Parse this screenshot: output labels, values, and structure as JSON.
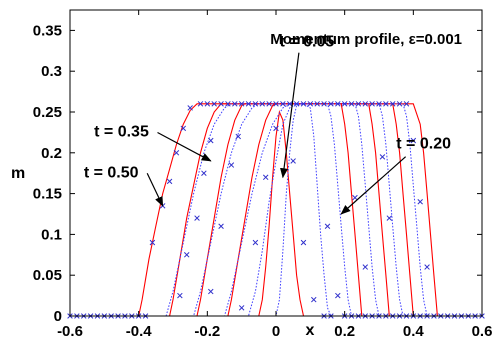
{
  "chart_data": {
    "type": "line",
    "title": "Momentum profile, ε=0.001",
    "xlabel": "x",
    "ylabel": "m",
    "xlim": [
      -0.6,
      0.6
    ],
    "ylim": [
      0,
      0.375
    ],
    "x_ticks": [
      "-0.6",
      "-0.4",
      "-0.2",
      "0",
      "0.2",
      "0.4",
      "0.6"
    ],
    "x_tick_values": [
      -0.6,
      -0.4,
      -0.2,
      0,
      0.2,
      0.4,
      0.6
    ],
    "y_ticks": [
      "0",
      "0.05",
      "0.1",
      "0.15",
      "0.2",
      "0.25",
      "0.3",
      "0.35"
    ],
    "y_tick_values": [
      0,
      0.05,
      0.1,
      0.15,
      0.2,
      0.25,
      0.3,
      0.35
    ],
    "plateau": 0.26,
    "grid": false,
    "colors": {
      "solid": "#ff0000",
      "dotted": "#4040ff",
      "markers": "#3030cc",
      "axes": "#000000"
    },
    "series": [
      {
        "style": "solid",
        "points": [
          [
            -0.4,
            0
          ],
          [
            -0.39,
            0.02
          ],
          [
            -0.37,
            0.07
          ],
          [
            -0.35,
            0.11
          ],
          [
            -0.33,
            0.15
          ],
          [
            -0.31,
            0.18
          ],
          [
            -0.29,
            0.21
          ],
          [
            -0.27,
            0.235
          ],
          [
            -0.25,
            0.252
          ],
          [
            -0.23,
            0.26
          ],
          [
            0.4,
            0.26
          ],
          [
            0.42,
            0.235
          ],
          [
            0.43,
            0.2
          ],
          [
            0.44,
            0.15
          ],
          [
            0.45,
            0.1
          ],
          [
            0.46,
            0.05
          ],
          [
            0.47,
            0
          ]
        ]
      },
      {
        "style": "solid",
        "points": [
          [
            -0.31,
            0
          ],
          [
            -0.3,
            0.02
          ],
          [
            -0.28,
            0.07
          ],
          [
            -0.26,
            0.12
          ],
          [
            -0.24,
            0.16
          ],
          [
            -0.22,
            0.2
          ],
          [
            -0.2,
            0.23
          ],
          [
            -0.18,
            0.25
          ],
          [
            -0.16,
            0.26
          ],
          [
            0.34,
            0.26
          ],
          [
            0.35,
            0.235
          ],
          [
            0.36,
            0.2
          ],
          [
            0.37,
            0.15
          ],
          [
            0.38,
            0.1
          ],
          [
            0.39,
            0.05
          ],
          [
            0.4,
            0
          ]
        ]
      },
      {
        "style": "solid",
        "points": [
          [
            -0.23,
            0
          ],
          [
            -0.22,
            0.02
          ],
          [
            -0.2,
            0.07
          ],
          [
            -0.18,
            0.12
          ],
          [
            -0.16,
            0.17
          ],
          [
            -0.14,
            0.21
          ],
          [
            -0.12,
            0.24
          ],
          [
            -0.1,
            0.258
          ],
          [
            -0.09,
            0.26
          ],
          [
            0.27,
            0.26
          ],
          [
            0.28,
            0.235
          ],
          [
            0.29,
            0.2
          ],
          [
            0.3,
            0.15
          ],
          [
            0.31,
            0.1
          ],
          [
            0.32,
            0.05
          ],
          [
            0.33,
            0
          ]
        ]
      },
      {
        "style": "solid",
        "points": [
          [
            -0.14,
            0
          ],
          [
            -0.13,
            0.02
          ],
          [
            -0.11,
            0.07
          ],
          [
            -0.09,
            0.12
          ],
          [
            -0.07,
            0.17
          ],
          [
            -0.05,
            0.21
          ],
          [
            -0.03,
            0.24
          ],
          [
            -0.01,
            0.258
          ],
          [
            0.0,
            0.26
          ],
          [
            0.19,
            0.26
          ],
          [
            0.2,
            0.235
          ],
          [
            0.21,
            0.2
          ],
          [
            0.22,
            0.15
          ],
          [
            0.23,
            0.1
          ],
          [
            0.24,
            0.05
          ],
          [
            0.25,
            0
          ]
        ]
      },
      {
        "style": "solid",
        "points": [
          [
            -0.05,
            0
          ],
          [
            -0.04,
            0.02
          ],
          [
            -0.03,
            0.06
          ],
          [
            -0.02,
            0.11
          ],
          [
            -0.01,
            0.17
          ],
          [
            0.0,
            0.22
          ],
          [
            0.01,
            0.25
          ],
          [
            0.02,
            0.24
          ],
          [
            0.03,
            0.2
          ],
          [
            0.04,
            0.15
          ],
          [
            0.05,
            0.1
          ],
          [
            0.06,
            0.05
          ],
          [
            0.07,
            0.02
          ],
          [
            0.08,
            0
          ]
        ]
      },
      {
        "style": "dotted",
        "points": [
          [
            -0.32,
            0
          ],
          [
            -0.3,
            0.03
          ],
          [
            -0.27,
            0.09
          ],
          [
            -0.24,
            0.15
          ],
          [
            -0.21,
            0.2
          ],
          [
            -0.18,
            0.235
          ],
          [
            -0.15,
            0.255
          ],
          [
            -0.13,
            0.26
          ],
          [
            0.37,
            0.26
          ],
          [
            0.38,
            0.245
          ],
          [
            0.39,
            0.21
          ],
          [
            0.4,
            0.16
          ],
          [
            0.41,
            0.11
          ],
          [
            0.42,
            0.06
          ],
          [
            0.43,
            0.02
          ],
          [
            0.44,
            0
          ]
        ]
      },
      {
        "style": "dotted",
        "points": [
          [
            -0.24,
            0
          ],
          [
            -0.22,
            0.03
          ],
          [
            -0.19,
            0.09
          ],
          [
            -0.16,
            0.15
          ],
          [
            -0.13,
            0.2
          ],
          [
            -0.1,
            0.235
          ],
          [
            -0.07,
            0.255
          ],
          [
            -0.05,
            0.26
          ],
          [
            0.3,
            0.26
          ],
          [
            0.31,
            0.245
          ],
          [
            0.32,
            0.21
          ],
          [
            0.33,
            0.16
          ],
          [
            0.34,
            0.11
          ],
          [
            0.35,
            0.06
          ],
          [
            0.36,
            0.02
          ],
          [
            0.37,
            0
          ]
        ]
      },
      {
        "style": "dotted",
        "points": [
          [
            -0.15,
            0
          ],
          [
            -0.13,
            0.03
          ],
          [
            -0.1,
            0.09
          ],
          [
            -0.07,
            0.15
          ],
          [
            -0.04,
            0.2
          ],
          [
            -0.01,
            0.235
          ],
          [
            0.02,
            0.255
          ],
          [
            0.04,
            0.26
          ],
          [
            0.23,
            0.26
          ],
          [
            0.24,
            0.245
          ],
          [
            0.25,
            0.21
          ],
          [
            0.26,
            0.16
          ],
          [
            0.27,
            0.11
          ],
          [
            0.28,
            0.06
          ],
          [
            0.29,
            0.02
          ],
          [
            0.3,
            0
          ]
        ]
      },
      {
        "style": "dotted",
        "points": [
          [
            -0.08,
            0
          ],
          [
            -0.06,
            0.03
          ],
          [
            -0.04,
            0.08
          ],
          [
            -0.02,
            0.14
          ],
          [
            0.0,
            0.19
          ],
          [
            0.02,
            0.235
          ],
          [
            0.04,
            0.255
          ],
          [
            0.06,
            0.26
          ],
          [
            0.15,
            0.26
          ],
          [
            0.16,
            0.245
          ],
          [
            0.17,
            0.21
          ],
          [
            0.18,
            0.16
          ],
          [
            0.19,
            0.11
          ],
          [
            0.2,
            0.06
          ],
          [
            0.21,
            0.02
          ],
          [
            0.22,
            0
          ]
        ]
      },
      {
        "style": "dotted",
        "points": [
          [
            0.0,
            0
          ],
          [
            0.01,
            0.02
          ],
          [
            0.02,
            0.08
          ],
          [
            0.03,
            0.15
          ],
          [
            0.04,
            0.2
          ],
          [
            0.05,
            0.24
          ],
          [
            0.06,
            0.258
          ],
          [
            0.08,
            0.26
          ],
          [
            0.1,
            0.255
          ],
          [
            0.11,
            0.22
          ],
          [
            0.12,
            0.16
          ],
          [
            0.13,
            0.1
          ],
          [
            0.14,
            0.05
          ],
          [
            0.15,
            0.01
          ],
          [
            0.16,
            0
          ]
        ]
      }
    ],
    "markers": [
      [
        -0.6,
        0
      ],
      [
        -0.58,
        0
      ],
      [
        -0.56,
        0
      ],
      [
        -0.54,
        0
      ],
      [
        -0.52,
        0
      ],
      [
        -0.5,
        0
      ],
      [
        -0.48,
        0
      ],
      [
        -0.46,
        0
      ],
      [
        -0.44,
        0
      ],
      [
        -0.42,
        0
      ],
      [
        -0.4,
        0
      ],
      [
        -0.38,
        0
      ],
      [
        -0.36,
        0.09
      ],
      [
        -0.33,
        0.135
      ],
      [
        -0.31,
        0.165
      ],
      [
        -0.29,
        0.2
      ],
      [
        -0.27,
        0.23
      ],
      [
        -0.28,
        0.025
      ],
      [
        -0.26,
        0.075
      ],
      [
        -0.23,
        0.12
      ],
      [
        -0.21,
        0.175
      ],
      [
        -0.19,
        0.215
      ],
      [
        -0.19,
        0.03
      ],
      [
        -0.16,
        0.11
      ],
      [
        -0.13,
        0.185
      ],
      [
        -0.11,
        0.22
      ],
      [
        -0.1,
        0.01
      ],
      [
        -0.06,
        0.09
      ],
      [
        -0.03,
        0.17
      ],
      [
        0.0,
        0.23
      ],
      [
        -0.25,
        0.255
      ],
      [
        -0.22,
        0.26
      ],
      [
        -0.2,
        0.26
      ],
      [
        -0.18,
        0.26
      ],
      [
        -0.16,
        0.26
      ],
      [
        -0.14,
        0.26
      ],
      [
        -0.12,
        0.26
      ],
      [
        -0.1,
        0.26
      ],
      [
        -0.08,
        0.26
      ],
      [
        -0.06,
        0.26
      ],
      [
        -0.04,
        0.26
      ],
      [
        -0.02,
        0.26
      ],
      [
        0.0,
        0.26
      ],
      [
        0.02,
        0.26
      ],
      [
        0.04,
        0.26
      ],
      [
        0.06,
        0.26
      ],
      [
        0.08,
        0.26
      ],
      [
        0.1,
        0.26
      ],
      [
        0.12,
        0.26
      ],
      [
        0.14,
        0.26
      ],
      [
        0.16,
        0.26
      ],
      [
        0.18,
        0.26
      ],
      [
        0.2,
        0.26
      ],
      [
        0.22,
        0.26
      ],
      [
        0.24,
        0.26
      ],
      [
        0.26,
        0.26
      ],
      [
        0.28,
        0.26
      ],
      [
        0.3,
        0.26
      ],
      [
        0.32,
        0.26
      ],
      [
        0.34,
        0.26
      ],
      [
        0.36,
        0.26
      ],
      [
        0.38,
        0.26
      ],
      [
        0.05,
        0.19
      ],
      [
        0.08,
        0.09
      ],
      [
        0.11,
        0.02
      ],
      [
        0.15,
        0.11
      ],
      [
        0.18,
        0.025
      ],
      [
        0.23,
        0.145
      ],
      [
        0.26,
        0.06
      ],
      [
        0.31,
        0.195
      ],
      [
        0.33,
        0.12
      ],
      [
        0.4,
        0.215
      ],
      [
        0.42,
        0.14
      ],
      [
        0.44,
        0.06
      ],
      [
        0.46,
        0
      ],
      [
        0.48,
        0
      ],
      [
        0.5,
        0
      ],
      [
        0.52,
        0
      ],
      [
        0.54,
        0
      ],
      [
        0.56,
        0
      ],
      [
        0.58,
        0
      ],
      [
        0.6,
        0
      ],
      [
        0.14,
        0
      ],
      [
        0.16,
        0
      ],
      [
        0.2,
        0
      ],
      [
        0.22,
        0
      ],
      [
        0.24,
        0
      ],
      [
        0.26,
        0
      ],
      [
        0.28,
        0
      ],
      [
        0.3,
        0
      ],
      [
        0.32,
        0
      ],
      [
        0.34,
        0
      ],
      [
        0.36,
        0
      ],
      [
        0.38,
        0
      ],
      [
        0.4,
        0
      ],
      [
        0.42,
        0
      ],
      [
        0.44,
        0
      ]
    ],
    "annotations": [
      {
        "text": "t = 0.05",
        "anchor": [
          0.09,
          0.33
        ],
        "arrow_to": [
          0.02,
          0.17
        ]
      },
      {
        "text": "t = 0.35",
        "anchor": [
          -0.45,
          0.22
        ],
        "arrow_to": [
          -0.19,
          0.19
        ]
      },
      {
        "text": "t = 0.50",
        "anchor": [
          -0.48,
          0.17
        ],
        "arrow_to": [
          -0.33,
          0.135
        ]
      },
      {
        "text": "t = 0.20",
        "anchor": [
          0.43,
          0.205
        ],
        "arrow_to": [
          0.19,
          0.125
        ]
      }
    ]
  }
}
